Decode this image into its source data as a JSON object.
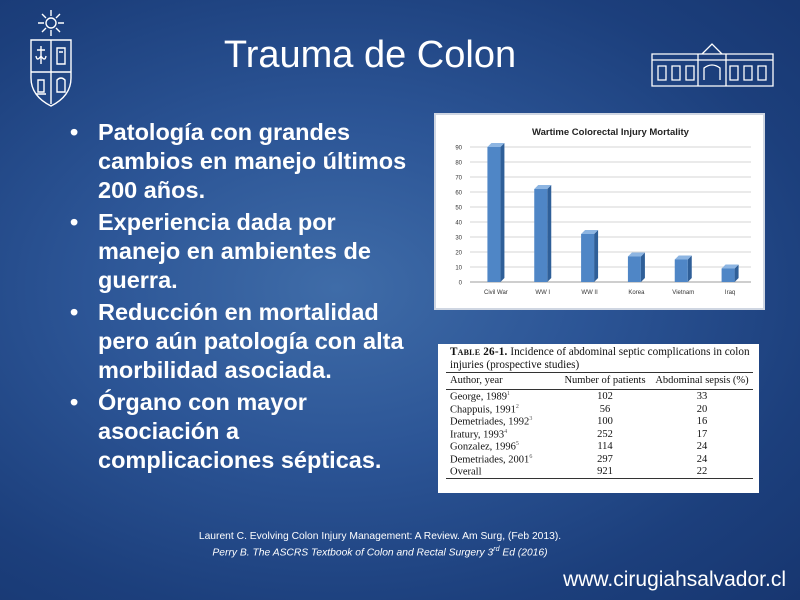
{
  "slide": {
    "title": "Trauma de Colon",
    "bullets": [
      "Patología con grandes cambios en manejo últimos 200 años.",
      "Experiencia dada por manejo en ambientes de guerra.",
      "Reducción en mortalidad pero aún patología con alta morbilidad asociada.",
      "Órgano con mayor asociación a complicaciones sépticas."
    ],
    "references": {
      "line1": "Laurent C. Evolving Colon Injury Management: A Review.  Am Surg, (Feb 2013).",
      "line2_pre": "Perry B. The ASCRS Textbook of Colon and Rectal Surgery 3",
      "line2_sup": "rd",
      "line2_post": " Ed (2016)"
    },
    "website": "www.cirugiahsalvador.cl"
  },
  "chart_data": {
    "type": "bar",
    "title": "Wartime Colorectal Injury Mortality",
    "categories": [
      "Civil War",
      "WW I",
      "WW II",
      "Korea",
      "Vietnam",
      "Iraq"
    ],
    "values": [
      90,
      62,
      32,
      17,
      15,
      9
    ],
    "ylim": [
      0,
      90
    ],
    "yticks": [
      0,
      10,
      20,
      30,
      40,
      50,
      60,
      70,
      80,
      90
    ],
    "grid": true,
    "bar_color": "#4f86c6"
  },
  "table": {
    "caption_label": "Table 26-1.",
    "caption_text": "Incidence of abdominal septic complications in colon injuries (prospective studies)",
    "headers": [
      "Author, year",
      "Number of patients",
      "Abdominal sepsis (%)"
    ],
    "rows": [
      {
        "author": "George, 1989",
        "sup": "1",
        "patients": "102",
        "sepsis": "33"
      },
      {
        "author": "Chappuis, 1991",
        "sup": "2",
        "patients": "56",
        "sepsis": "20"
      },
      {
        "author": "Demetriades, 1992",
        "sup": "3",
        "patients": "100",
        "sepsis": "16"
      },
      {
        "author": "Iratury, 1993",
        "sup": "4",
        "patients": "252",
        "sepsis": "17"
      },
      {
        "author": "Gonzalez, 1996",
        "sup": "5",
        "patients": "114",
        "sepsis": "24"
      },
      {
        "author": "Demetriades, 2001",
        "sup": "6",
        "patients": "297",
        "sepsis": "24"
      },
      {
        "author": "Overall",
        "sup": "",
        "patients": "921",
        "sepsis": "22"
      }
    ]
  }
}
